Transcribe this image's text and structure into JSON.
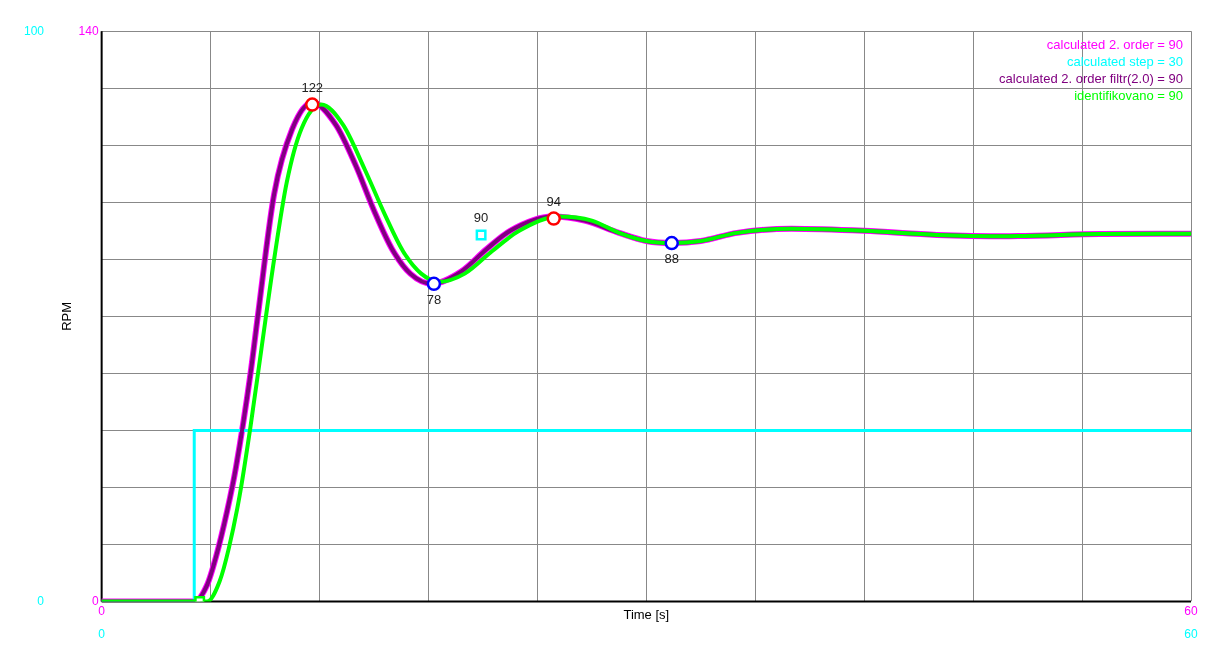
{
  "chart_data": {
    "type": "line",
    "xlabel": "Time [s]",
    "ylabel": "RPM",
    "legend": "top right",
    "grid": true,
    "marker": "none",
    "line_style": "solid",
    "xlim": [
      0,
      60
    ],
    "xticks": [
      0,
      {
        "value": 6,
        "label": null
      },
      {
        "value": 12,
        "label": null
      },
      {
        "value": 18,
        "label": null
      },
      {
        "value": 24,
        "label": null
      },
      {
        "value": 30,
        "label": null
      },
      {
        "value": 36,
        "label": null
      },
      {
        "value": 42,
        "label": null
      },
      {
        "value": 48,
        "label": null
      },
      {
        "value": 54,
        "label": null
      },
      60
    ],
    "x2lim": [
      0,
      60
    ],
    "x2ticks": [
      0,
      60
    ],
    "ylim": [
      0,
      140
    ],
    "yticks": [
      0,
      {
        "value": 14,
        "label": null
      },
      {
        "value": 28,
        "label": null
      },
      {
        "value": 42,
        "label": null
      },
      {
        "value": 56,
        "label": null
      },
      {
        "value": 70,
        "label": null
      },
      {
        "value": 84,
        "label": null
      },
      {
        "value": 98,
        "label": null
      },
      {
        "value": 112,
        "label": null
      },
      {
        "value": 126,
        "label": null
      },
      140
    ],
    "y2lim": [
      0,
      100
    ],
    "y2ticks": [
      0,
      100
    ],
    "series": [
      {
        "name": "calculated 2. order = 90",
        "color": "#ff00ff",
        "x": [
          0,
          5.1,
          5.8,
          6.3,
          6.9,
          7.4,
          8.2,
          8.6,
          9.5,
          10.5,
          11.6,
          12.9,
          14,
          15,
          16,
          17,
          18.2,
          19.8,
          21.2,
          22.5,
          24.8,
          26.6,
          28.5,
          30,
          31.4,
          33,
          35,
          38,
          42,
          46,
          50,
          55,
          60
        ],
        "values": [
          0,
          0,
          4,
          11,
          22,
          33,
          56,
          70,
          100,
          116,
          122.5,
          117,
          107,
          96,
          86.5,
          80.5,
          78,
          81,
          86.5,
          91,
          94.5,
          93.5,
          90.5,
          88.5,
          88,
          88.5,
          90.5,
          91.5,
          91,
          90,
          89.7,
          90.2,
          90.3
        ]
      },
      {
        "name": "calculated step = 30",
        "color": "#00ffff",
        "type": "step",
        "axis": "y2",
        "x": [
          0,
          5.1,
          60
        ],
        "values": [
          0,
          30,
          30
        ]
      },
      {
        "name": "calculated 2. order filtr(2.0) = 90",
        "color": "#800080",
        "x": [
          0,
          5.1,
          5.8,
          6.3,
          6.9,
          7.4,
          8.2,
          8.6,
          9.5,
          10.5,
          11.6,
          12.9,
          14,
          15,
          16,
          17,
          18.2,
          19.8,
          21.2,
          22.5,
          24.8,
          26.6,
          28.5,
          30,
          31.4,
          33,
          35,
          38,
          42,
          46,
          50,
          55,
          60
        ],
        "values": [
          0,
          0,
          4,
          11,
          22,
          33,
          56,
          70,
          100,
          116,
          122.5,
          117,
          107,
          96,
          86.5,
          80.5,
          78,
          81,
          86.5,
          91,
          94.5,
          93.5,
          90.5,
          88.5,
          88,
          88.5,
          90.5,
          91.5,
          91,
          90,
          89.7,
          90.2,
          90.3
        ]
      },
      {
        "name": "identifikovano = 90",
        "color": "#00ff00",
        "x": [
          0,
          5.8,
          6.5,
          7,
          7.6,
          8.2,
          8.8,
          9.5,
          10.2,
          11,
          12.1,
          13.3,
          14.5,
          15.6,
          16.6,
          17.6,
          18.6,
          20,
          21.5,
          23,
          25.2,
          27,
          28.5,
          30,
          31.4,
          33,
          35,
          38,
          42,
          46,
          50,
          55,
          60
        ],
        "values": [
          0,
          0,
          5,
          13,
          26,
          43,
          62,
          84,
          103,
          116,
          122,
          117,
          106,
          95,
          86,
          80.5,
          78.5,
          80.5,
          86,
          91,
          94.5,
          93.5,
          90.5,
          88.5,
          88,
          88.5,
          90.5,
          91.5,
          91,
          90,
          89.7,
          90.2,
          90.3
        ]
      },
      {
        "type": "scatter",
        "marker": "circle",
        "color": "#ff0000",
        "x": [
          11.6,
          24.9
        ],
        "values": [
          122,
          94
        ],
        "value_labels": [
          "122",
          "94"
        ]
      },
      {
        "type": "scatter",
        "marker": "circle",
        "color": "#0000ff",
        "x": [
          18.3,
          31.4
        ],
        "values": [
          78,
          88
        ],
        "value_labels": [
          "78",
          "88"
        ]
      },
      {
        "type": "scatter",
        "marker": "square",
        "color": "#00ffff",
        "x": [
          20.9
        ],
        "values": [
          90
        ],
        "value_labels": [
          "90"
        ]
      },
      {
        "type": "scatter",
        "marker": "square",
        "color": "#00ff00",
        "x": [
          5.4
        ],
        "values": [
          0
        ]
      }
    ]
  }
}
